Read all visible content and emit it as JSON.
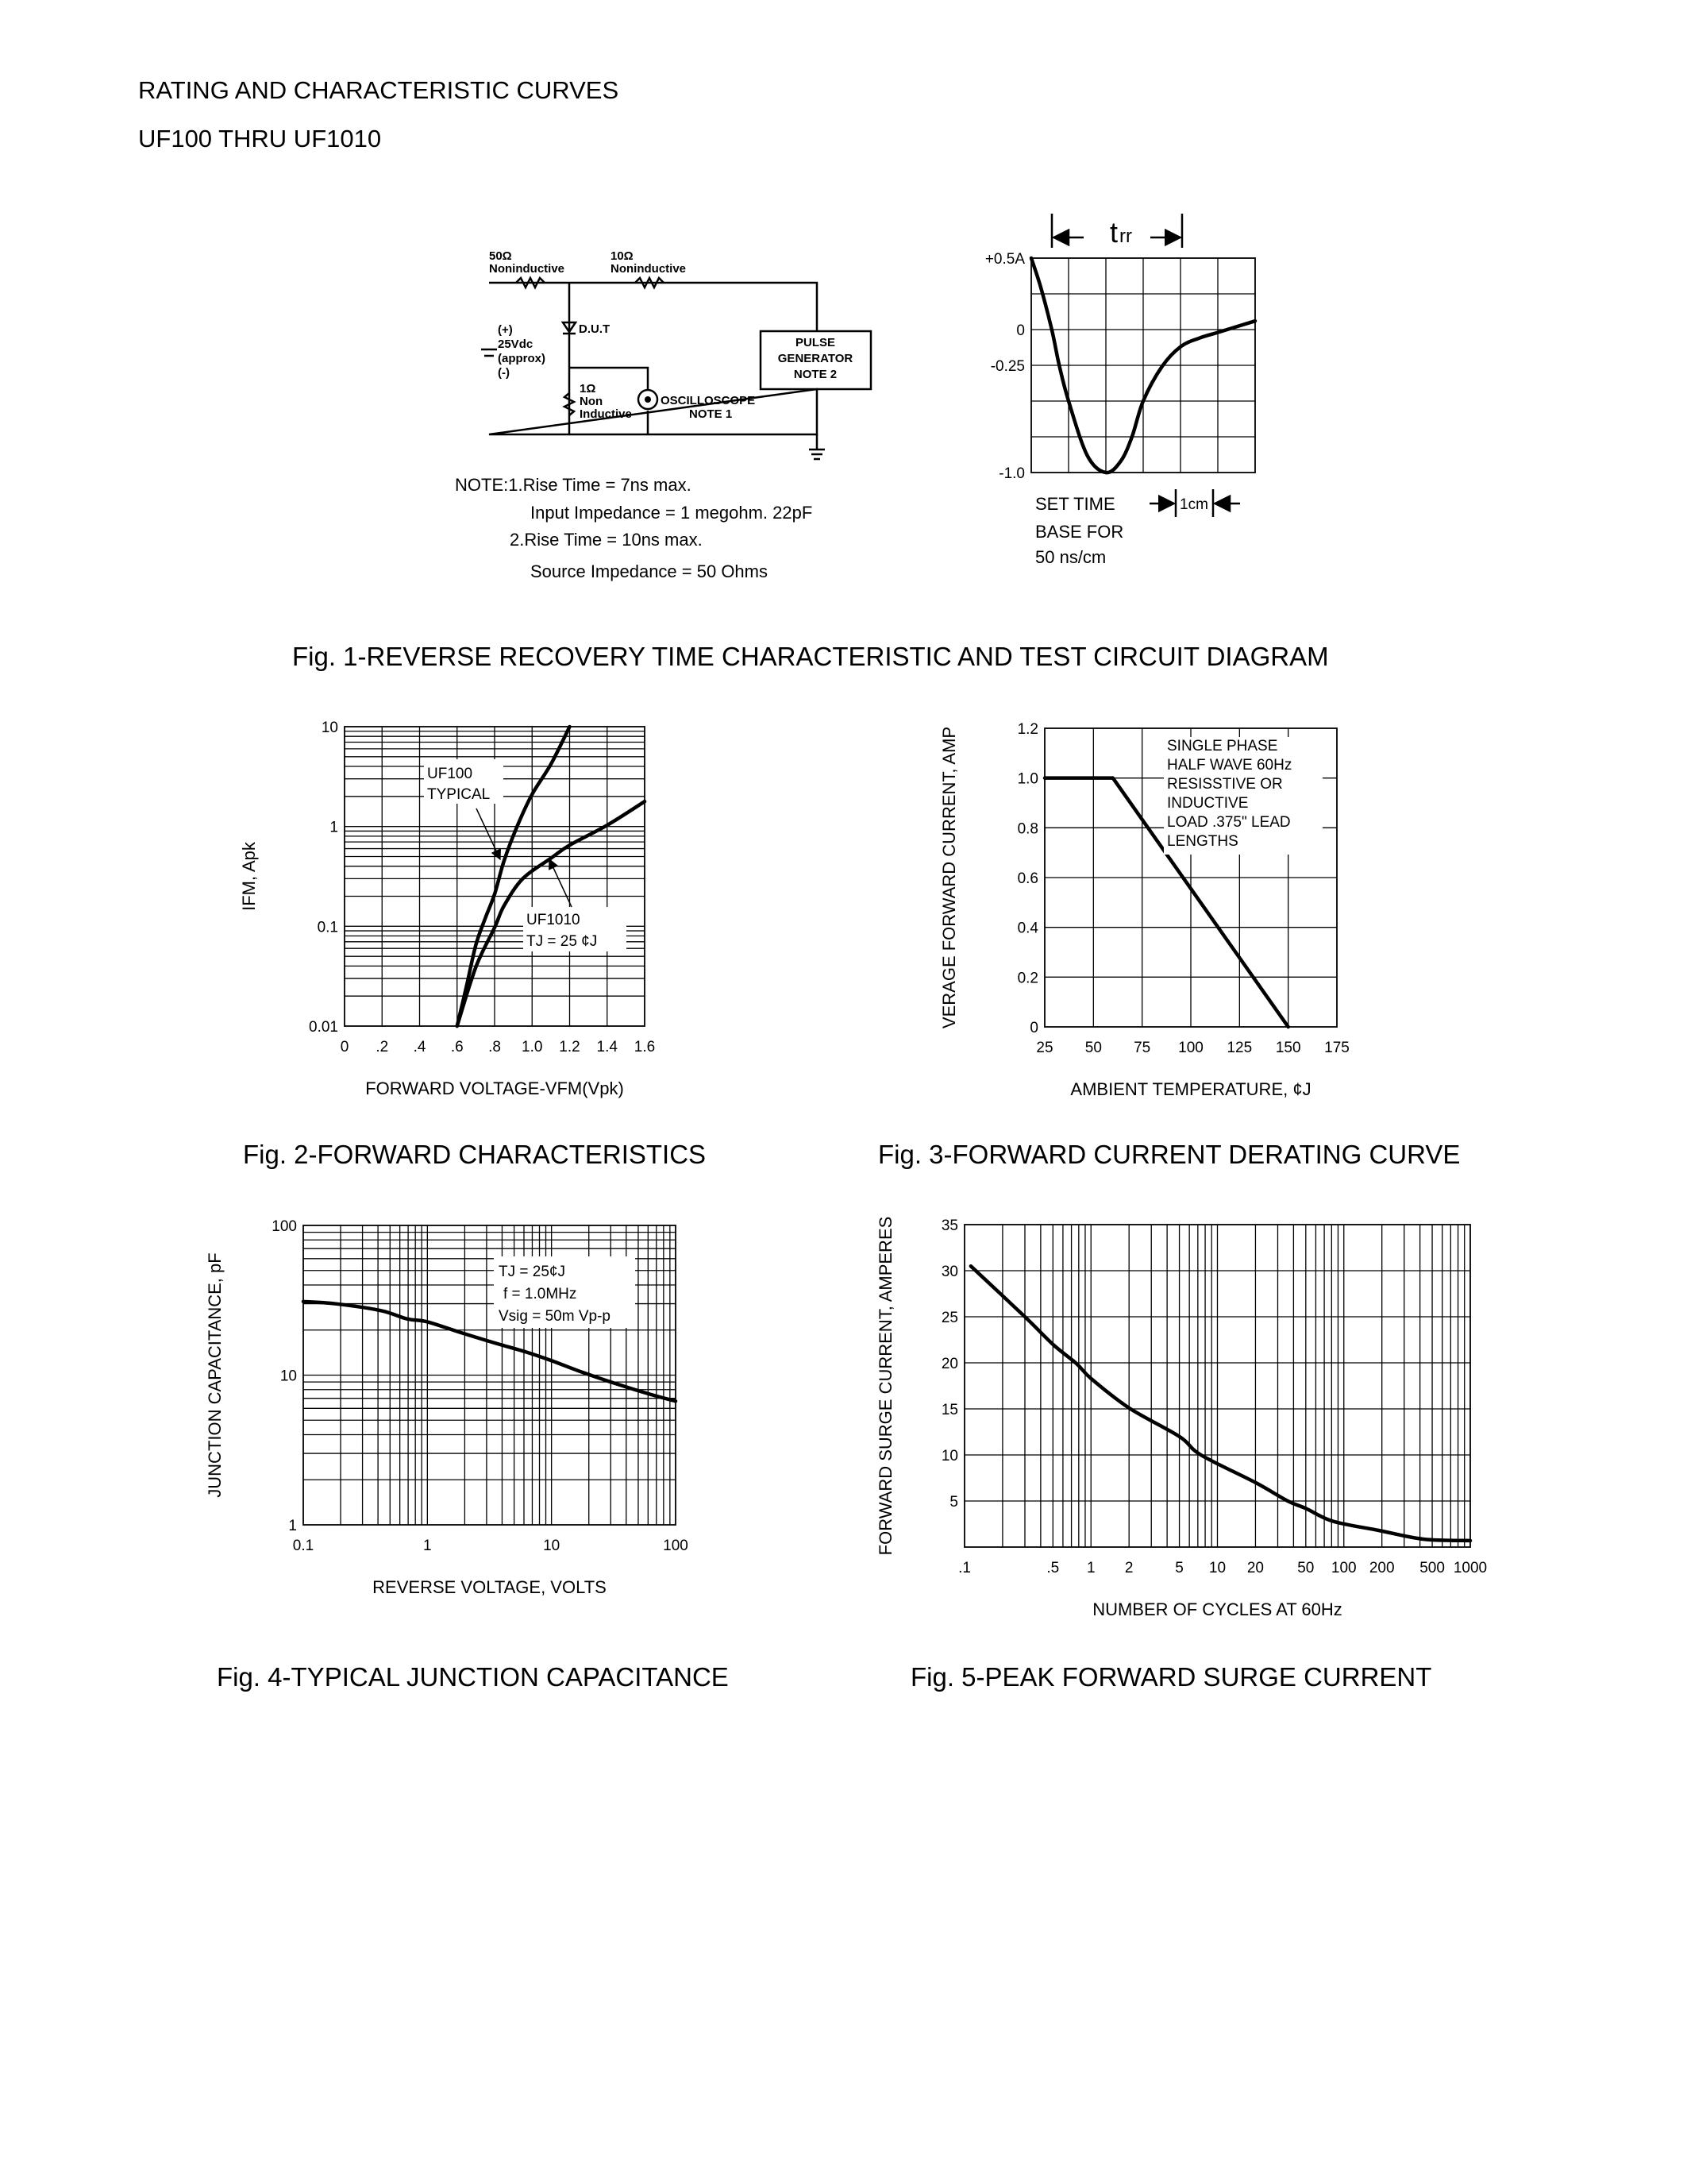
{
  "header": {
    "title": "RATING AND CHARACTERISTIC CURVES",
    "subtitle": "UF100 THRU UF1010"
  },
  "fig1": {
    "caption": "Fig. 1-REVERSE RECOVERY TIME CHARACTERISTIC AND TEST CIRCUIT DIAGRAM",
    "circuit": {
      "r1_value": "50Ω",
      "r1_type": "Noninductive",
      "r2_value": "10Ω",
      "r2_type": "Noninductive",
      "supply_plus": "(+)",
      "supply_value": "25Vdc",
      "supply_approx": "(approx)",
      "supply_minus": "(-)",
      "dut": "D.U.T",
      "pulse_gen_1": "PULSE",
      "pulse_gen_2": "GENERATOR",
      "pulse_gen_3": "NOTE 2",
      "r3_value": "1Ω",
      "r3_type_1": "Non",
      "r3_type_2": "Inductive",
      "scope_1": "OSCILLOSCOPE",
      "scope_2": "NOTE 1"
    },
    "notes": [
      "NOTE:1.Rise Time = 7ns max.",
      "Input Impedance = 1 megohm.   22pF",
      "2.Rise Time = 10ns max.",
      "Source Impedance = 50 Ohms"
    ],
    "trr_label": "t",
    "trr_sub": "rr",
    "set_time": [
      "SET TIME",
      "BASE FOR",
      "50 ns/cm"
    ],
    "cm_label": "1cm"
  },
  "captions": {
    "fig2": "Fig. 2-FORWARD CHARACTERISTICS",
    "fig3": "Fig. 3-FORWARD CURRENT DERATING CURVE",
    "fig4": "Fig. 4-TYPICAL JUNCTION CAPACITANCE",
    "fig5": "Fig. 5-PEAK FORWARD SURGE CURRENT"
  },
  "chart_data": [
    {
      "type": "line",
      "xlabel": "",
      "ylabel": "",
      "xscale": "linear",
      "yscale": "linear",
      "xlim": [
        0,
        6
      ],
      "ylim": [
        -1.0,
        0.5
      ],
      "grid": true,
      "x_ticks": [],
      "y_ticks": [
        {
          "label": "+0.5A",
          "value": 0.5
        },
        {
          "label": "0",
          "value": 0
        },
        {
          "label": "-0.25",
          "value": -0.25
        },
        {
          "label": "-1.0",
          "value": -1.0
        }
      ],
      "series": [
        {
          "points": [
            [
              0,
              0.5
            ],
            [
              0.25,
              0.3
            ],
            [
              0.55,
              0
            ],
            [
              0.75,
              -0.25
            ],
            [
              1.0,
              -0.5
            ],
            [
              1.5,
              -0.88
            ],
            [
              2.0,
              -1.0
            ],
            [
              2.4,
              -0.92
            ],
            [
              2.7,
              -0.75
            ],
            [
              3.0,
              -0.5
            ],
            [
              3.5,
              -0.26
            ],
            [
              4.0,
              -0.12
            ],
            [
              4.5,
              -0.06
            ],
            [
              5.0,
              -0.02
            ],
            [
              6.0,
              0.06
            ]
          ]
        }
      ]
    },
    {
      "type": "line",
      "xlabel": "FORWARD VOLTAGE-VFM(Vpk)",
      "ylabel": "IFM, Apk",
      "xscale": "linear",
      "yscale": "log",
      "xlim": [
        0,
        1.6
      ],
      "ylim": [
        0.01,
        10
      ],
      "grid": true,
      "x_ticks": [
        {
          "label": "0",
          "value": 0
        },
        {
          "label": ".2",
          "value": 0.2
        },
        {
          "label": ".4",
          "value": 0.4
        },
        {
          "label": ".6",
          "value": 0.6
        },
        {
          "label": ".8",
          "value": 0.8
        },
        {
          "label": "1.0",
          "value": 1.0
        },
        {
          "label": "1.2",
          "value": 1.2
        },
        {
          "label": "1.4",
          "value": 1.4
        },
        {
          "label": "1.6",
          "value": 1.6
        }
      ],
      "y_ticks": [
        {
          "label": "0.01",
          "value": 0.01
        },
        {
          "label": "0.1",
          "value": 0.1
        },
        {
          "label": "1",
          "value": 1
        },
        {
          "label": "10",
          "value": 10
        }
      ],
      "series": [
        {
          "name": "UF100 TYPICAL",
          "points": [
            [
              0.6,
              0.01
            ],
            [
              0.65,
              0.025
            ],
            [
              0.7,
              0.065
            ],
            [
              0.75,
              0.12
            ],
            [
              0.8,
              0.21
            ],
            [
              0.85,
              0.45
            ],
            [
              0.92,
              1.0
            ],
            [
              1.0,
              2.1
            ],
            [
              1.1,
              4.2
            ],
            [
              1.2,
              10
            ]
          ]
        },
        {
          "name": "UF1010",
          "points": [
            [
              0.6,
              0.01
            ],
            [
              0.7,
              0.039
            ],
            [
              0.8,
              0.097
            ],
            [
              0.85,
              0.16
            ],
            [
              0.95,
              0.3
            ],
            [
              1.1,
              0.48
            ],
            [
              1.2,
              0.65
            ],
            [
              1.4,
              1.03
            ],
            [
              1.6,
              1.78
            ]
          ]
        }
      ],
      "annotations": [
        "UF100",
        "TYPICAL",
        "UF1010",
        "TJ = 25 ¢J"
      ]
    },
    {
      "type": "line",
      "xlabel": "AMBIENT TEMPERATURE, ¢J",
      "ylabel": "VERAGE FORWARD CURRENT, AMP",
      "xscale": "linear",
      "yscale": "linear",
      "xlim": [
        25,
        175
      ],
      "ylim": [
        0,
        1.2
      ],
      "grid": true,
      "x_ticks": [
        {
          "label": "25",
          "value": 25
        },
        {
          "label": "50",
          "value": 50
        },
        {
          "label": "75",
          "value": 75
        },
        {
          "label": "100",
          "value": 100
        },
        {
          "label": "125",
          "value": 125
        },
        {
          "label": "150",
          "value": 150
        },
        {
          "label": "175",
          "value": 175
        }
      ],
      "y_ticks": [
        {
          "label": "0",
          "value": 0
        },
        {
          "label": "0.2",
          "value": 0.2
        },
        {
          "label": "0.4",
          "value": 0.4
        },
        {
          "label": "0.6",
          "value": 0.6
        },
        {
          "label": "0.8",
          "value": 0.8
        },
        {
          "label": "1.0",
          "value": 1.0
        },
        {
          "label": "1.2",
          "value": 1.2
        }
      ],
      "series": [
        {
          "points": [
            [
              25,
              1.0
            ],
            [
              60,
              1.0
            ],
            [
              150,
              0
            ]
          ]
        }
      ],
      "annotations": [
        "SINGLE PHASE",
        "HALF WAVE 60Hz",
        "RESISSTIVE OR",
        "INDUCTIVE",
        "LOAD .375\" LEAD",
        "LENGTHS"
      ]
    },
    {
      "type": "line",
      "xlabel": "REVERSE VOLTAGE, VOLTS",
      "ylabel": "JUNCTION CAPACITANCE, pF",
      "xscale": "log",
      "yscale": "log",
      "xlim": [
        0.1,
        100
      ],
      "ylim": [
        1,
        100
      ],
      "grid": true,
      "x_ticks": [
        {
          "label": "0.1",
          "value": 0.1
        },
        {
          "label": "1",
          "value": 1
        },
        {
          "label": "10",
          "value": 10
        },
        {
          "label": "100",
          "value": 100
        }
      ],
      "y_ticks": [
        {
          "label": "1",
          "value": 1
        },
        {
          "label": "10",
          "value": 10
        },
        {
          "label": "100",
          "value": 100
        }
      ],
      "series": [
        {
          "points": [
            [
              0.1,
              31
            ],
            [
              0.18,
              30
            ],
            [
              0.42,
              27
            ],
            [
              0.68,
              23.8
            ],
            [
              1.0,
              22.7
            ],
            [
              1.8,
              19.4
            ],
            [
              3.4,
              16.5
            ],
            [
              6.2,
              14.3
            ],
            [
              10,
              12.5
            ],
            [
              18,
              10.4
            ],
            [
              34,
              8.7
            ],
            [
              64,
              7.4
            ],
            [
              100,
              6.7
            ]
          ]
        }
      ],
      "annotations": [
        "TJ = 25¢J",
        "f = 1.0MHz",
        "Vsig = 50m Vp-p"
      ]
    },
    {
      "type": "line",
      "xlabel": "NUMBER OF CYCLES AT 60Hz",
      "ylabel": "FORWARD SURGE CURRENT, AMPERES",
      "xscale": "log",
      "yscale": "linear",
      "xlim": [
        0.1,
        1000
      ],
      "ylim": [
        0,
        35
      ],
      "grid": true,
      "x_ticks": [
        {
          "label": ".1",
          "value": 0.1
        },
        {
          "label": ".5",
          "value": 0.5
        },
        {
          "label": "1",
          "value": 1
        },
        {
          "label": "2",
          "value": 2
        },
        {
          "label": "5",
          "value": 5
        },
        {
          "label": "10",
          "value": 10
        },
        {
          "label": "20",
          "value": 20
        },
        {
          "label": "50",
          "value": 50
        },
        {
          "label": "100",
          "value": 100
        },
        {
          "label": "200",
          "value": 200
        },
        {
          "label": "500",
          "value": 500
        },
        {
          "label": "1000",
          "value": 1000
        }
      ],
      "y_ticks": [
        {
          "label": "5",
          "value": 5
        },
        {
          "label": "10",
          "value": 10
        },
        {
          "label": "15",
          "value": 15
        },
        {
          "label": "20",
          "value": 20
        },
        {
          "label": "25",
          "value": 25
        },
        {
          "label": "30",
          "value": 30
        },
        {
          "label": "35",
          "value": 35
        }
      ],
      "series": [
        {
          "points": [
            [
              0.112,
              30.5
            ],
            [
              0.3,
              25
            ],
            [
              0.5,
              22
            ],
            [
              0.77,
              19.9
            ],
            [
              1,
              18.3
            ],
            [
              2,
              15.1
            ],
            [
              5,
              12
            ],
            [
              7.4,
              10
            ],
            [
              20,
              7
            ],
            [
              36,
              5
            ],
            [
              50,
              4.2
            ],
            [
              82,
              2.8
            ],
            [
              190,
              1.8
            ],
            [
              430,
              0.85
            ],
            [
              1000,
              0.7
            ]
          ]
        }
      ]
    }
  ]
}
